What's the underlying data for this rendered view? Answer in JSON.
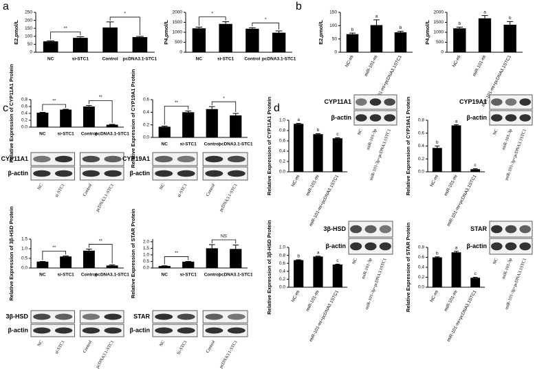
{
  "panel_labels": [
    "a",
    "b",
    "c",
    "d"
  ],
  "chart_data": [
    {
      "type": "bar",
      "ylabel": "E2,pmol/L",
      "categories": [
        "NC",
        "si-STC1",
        "Control",
        "pcDNA3.1-STC1"
      ],
      "values": [
        68,
        90,
        155,
        95
      ],
      "errors": [
        3,
        7,
        35,
        4
      ],
      "color": "#000000",
      "ylim": [
        0,
        250
      ],
      "yticks": [
        0,
        50,
        100,
        150,
        200,
        250
      ],
      "annotations": [
        "**",
        "*"
      ]
    },
    {
      "type": "bar",
      "ylabel": "P4,pmol/L",
      "categories": [
        "NC",
        "si-STC1",
        "Control",
        "pcDNA3.1-STC1"
      ],
      "values": [
        1200,
        1420,
        1180,
        980
      ],
      "errors": [
        60,
        110,
        50,
        90
      ],
      "color": "#000000",
      "ylim": [
        0,
        2000
      ],
      "yticks": [
        0,
        500,
        1000,
        1500,
        2000
      ],
      "annotations": [
        "*",
        "*"
      ]
    },
    {
      "type": "bar",
      "ylabel": "E2,pmol/L",
      "categories": [
        "NC-mi",
        "miR-101-mi",
        "miR-101-mi+pcDNA3.1STC1"
      ],
      "values": [
        68,
        102,
        75
      ],
      "errors": [
        4,
        20,
        4
      ],
      "color": "#000000",
      "ylim": [
        0,
        150
      ],
      "yticks": [
        0,
        50,
        100,
        150
      ],
      "annotations": [
        "b",
        "a",
        "b"
      ]
    },
    {
      "type": "bar",
      "ylabel": "P4,pmol/L",
      "categories": [
        "NC-mi",
        "miR-101-mi",
        "miR-101-mi+pcDNA3.1STC1"
      ],
      "values": [
        1200,
        1700,
        1380
      ],
      "errors": [
        60,
        140,
        160
      ],
      "color": "#000000",
      "ylim": [
        0,
        2000
      ],
      "yticks": [
        0,
        500,
        1000,
        1500,
        2000
      ],
      "annotations": [
        "b",
        "a",
        "b"
      ]
    },
    {
      "type": "bar",
      "ylabel": "Relative Expression of CYP11A1 Protein",
      "categories": [
        "NC",
        "si-STC1",
        "Control",
        "pcDNA3.1-STC1"
      ],
      "values": [
        0.42,
        0.51,
        0.6,
        0.07
      ],
      "errors": [
        0.01,
        0.01,
        0.03,
        0.01
      ],
      "color": "#000000",
      "ylim": [
        0,
        0.8
      ],
      "yticks": [
        {
          "value": 0,
          "label": "0.0"
        },
        0.2,
        0.4,
        0.6,
        0.8
      ],
      "annotations": [
        "**",
        "**"
      ]
    },
    {
      "type": "bar",
      "ylabel": "Relative Expression of CYP19A1 Protein",
      "categories": [
        "NC",
        "si-STC1",
        "Control",
        "pcDNA3.1-STC1"
      ],
      "values": [
        0.17,
        0.4,
        0.45,
        0.35
      ],
      "errors": [
        0.01,
        0.02,
        0.04,
        0.03
      ],
      "color": "#000000",
      "ylim": [
        0,
        0.6
      ],
      "yticks": [
        {
          "value": 0,
          "label": "0.0"
        },
        0.2,
        0.4,
        0.6
      ],
      "annotations": [
        "**",
        "*"
      ]
    },
    {
      "type": "bar",
      "ylabel": "Relative Expression of 3β-HSD Protein",
      "categories": [
        "NC",
        "si-STC1",
        "Control",
        "pcDNA3.1-STC1"
      ],
      "values": [
        0.33,
        0.6,
        0.9,
        0.13
      ],
      "errors": [
        0.01,
        0.03,
        0.08,
        0.03
      ],
      "color": "#000000",
      "ylim": [
        0,
        1.5
      ],
      "yticks": [
        {
          "value": 0,
          "label": "0.0"
        },
        0.5,
        {
          "value": 1,
          "label": "1.0"
        },
        1.5
      ],
      "annotations": [
        "**",
        "**"
      ]
    },
    {
      "type": "bar",
      "ylabel": "Relative Expression of STAR Protein",
      "categories": [
        "NC",
        "si-STC1",
        "Control",
        "pcDNA3.1-STC1"
      ],
      "values": [
        0.15,
        0.48,
        1.5,
        1.45
      ],
      "errors": [
        0.02,
        0.02,
        0.28,
        0.3
      ],
      "color": "#000000",
      "ylim": [
        0,
        2.2
      ],
      "yticks": [
        {
          "value": 0,
          "label": "0.0"
        },
        0.5,
        {
          "value": 1,
          "label": "1.0"
        },
        1.5,
        {
          "value": 2,
          "label": "2.0"
        }
      ],
      "annotations": [
        "**",
        "NS"
      ]
    },
    {
      "type": "bar",
      "ylabel": "Relative Expression of CYP11A1 Protein",
      "categories": [
        "NC-mi",
        "miR-101-mi",
        "miR-101-mi+pcDNA3.1STC1"
      ],
      "values": [
        0.93,
        0.73,
        0.65
      ],
      "errors": [
        0.01,
        0.01,
        0.01
      ],
      "color": "#000000",
      "ylim": [
        0,
        1
      ],
      "yticks": [
        {
          "value": 0,
          "label": "0.0"
        },
        0.2,
        0.4,
        0.6,
        0.8,
        {
          "value": 1,
          "label": "1.0"
        }
      ],
      "annotations": [
        "a",
        "b",
        "c"
      ]
    },
    {
      "type": "bar",
      "ylabel": "Relative Expression of CYP19A1 Protein",
      "categories": [
        "NC-mi",
        "miR-101-mi",
        "miR-101-mi+pcDNA3.1STC1"
      ],
      "values": [
        0.37,
        0.72,
        0.04
      ],
      "errors": [
        0.03,
        0.01,
        0.01
      ],
      "color": "#000000",
      "ylim": [
        0,
        0.8
      ],
      "yticks": [
        {
          "value": 0,
          "label": "0.0"
        },
        0.2,
        0.4,
        0.6,
        0.8
      ],
      "annotations": [
        "b",
        "a",
        "c"
      ]
    },
    {
      "type": "bar",
      "ylabel": "Relative Expression of 3β-HSD Protein",
      "categories": [
        "NC-mi",
        "miR-101-mi",
        "miR-101-mi+pcDNA3.1STC1"
      ],
      "values": [
        0.68,
        0.77,
        0.57
      ],
      "errors": [
        0.01,
        0.01,
        0.01
      ],
      "color": "#000000",
      "ylim": [
        0,
        1
      ],
      "yticks": [
        {
          "value": 0,
          "label": "0.0"
        },
        0.2,
        0.4,
        0.6,
        0.8,
        {
          "value": 1,
          "label": "1.0"
        }
      ],
      "annotations": [
        "b",
        "a",
        "c"
      ]
    },
    {
      "type": "bar",
      "ylabel": "Relative Expression of STAR Protein",
      "categories": [
        "NC-mi",
        "miR-101-mi",
        "miR-101-mi+pcDNA3.1STC1"
      ],
      "values": [
        0.6,
        0.7,
        0.19
      ],
      "errors": [
        0.01,
        0.02,
        0.01
      ],
      "color": "#000000",
      "ylim": [
        0,
        0.8
      ],
      "yticks": [
        {
          "value": 0,
          "label": "0.0"
        },
        0.2,
        0.4,
        0.6,
        0.8
      ],
      "annotations": [
        "b",
        "a",
        "c"
      ]
    }
  ],
  "blots": [
    {
      "rows": [
        "CYP11A1",
        "β-actin"
      ],
      "lanes": [
        "NC",
        "si-STC1",
        "Control",
        "pcDNA3.1-STC1"
      ]
    },
    {
      "rows": [
        "CYP19A1",
        "β-actin"
      ],
      "lanes": [
        "NC",
        "si-STC1",
        "Control",
        "pcDNA3.1-STC1"
      ]
    },
    {
      "rows": [
        "3β-HSD",
        "β-actin"
      ],
      "lanes": [
        "NC",
        "si-STC1",
        "Control",
        "pcDNA3.1-STC1"
      ]
    },
    {
      "rows": [
        "STAR",
        "β-actin"
      ],
      "lanes": [
        "NC",
        "Si-STC1",
        "Control",
        "pcDNA3.1-STC1"
      ]
    },
    {
      "rows": [
        "CYP11A1",
        "β-actin"
      ],
      "lanes": [
        "NC",
        "miR-101-3p",
        "miR-101-3p+pcDNA3.1STC1"
      ]
    },
    {
      "rows": [
        "CYP19A1",
        "β-actin"
      ],
      "lanes": [
        "NC",
        "miR-101-3p",
        "miR-101-3p+pcDNA3.1STC1"
      ]
    },
    {
      "rows": [
        "3β-HSD",
        "β-actin"
      ],
      "lanes": [
        "NC",
        "miR-101-3p",
        "miR-101-3p+pcDNA3.1STC1"
      ]
    },
    {
      "rows": [
        "STAR",
        "β-actin"
      ],
      "lanes": [
        "NC",
        "miR-101-3p",
        "miR-101-3p+pcDNA3.1STC1"
      ]
    }
  ]
}
